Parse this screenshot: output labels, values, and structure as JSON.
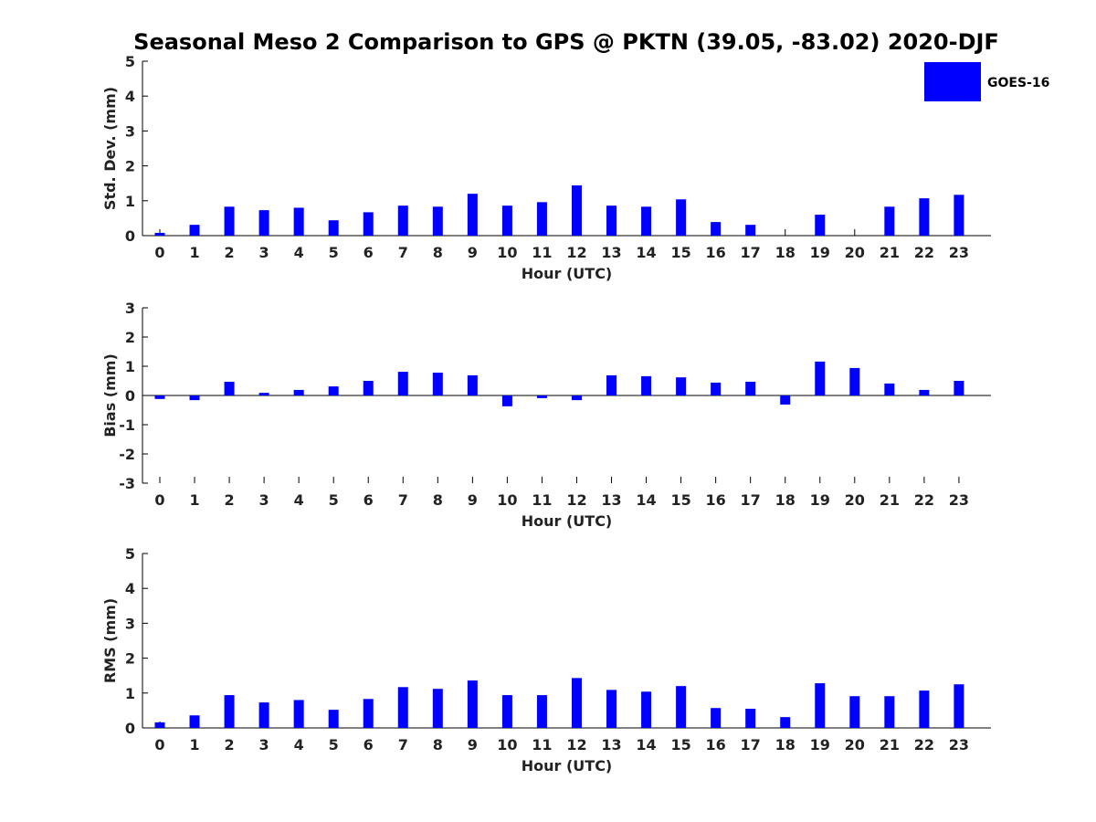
{
  "title": "Seasonal Meso 2 Comparison to GPS @ PKTN (39.05, -83.02) 2020-DJF",
  "legend": {
    "label": "GOES-16",
    "color": "#0000ff",
    "position": "top-right"
  },
  "chart_data": [
    {
      "type": "bar",
      "ylabel": "Std. Dev. (mm)",
      "xlabel": "Hour (UTC)",
      "ylim": [
        0,
        5
      ],
      "yticks": [
        "0",
        "1",
        "2",
        "3",
        "4",
        "5"
      ],
      "categories": [
        "0",
        "1",
        "2",
        "3",
        "4",
        "5",
        "6",
        "7",
        "8",
        "9",
        "10",
        "11",
        "12",
        "13",
        "14",
        "15",
        "16",
        "17",
        "18",
        "19",
        "20",
        "21",
        "22",
        "23"
      ],
      "series": [
        {
          "name": "GOES-16",
          "values": [
            0.08,
            0.31,
            0.83,
            0.73,
            0.8,
            0.44,
            0.67,
            0.86,
            0.83,
            1.2,
            0.86,
            0.96,
            1.44,
            0.86,
            0.83,
            1.04,
            0.39,
            0.31,
            null,
            0.6,
            null,
            0.83,
            1.07,
            1.17
          ]
        }
      ]
    },
    {
      "type": "bar",
      "ylabel": "Bias (mm)",
      "xlabel": "Hour (UTC)",
      "ylim": [
        -3,
        3
      ],
      "yticks": [
        "-3",
        "-2",
        "-1",
        "0",
        "1",
        "2",
        "3"
      ],
      "categories": [
        "0",
        "1",
        "2",
        "3",
        "4",
        "5",
        "6",
        "7",
        "8",
        "9",
        "10",
        "11",
        "12",
        "13",
        "14",
        "15",
        "16",
        "17",
        "18",
        "19",
        "20",
        "21",
        "22",
        "23"
      ],
      "series": [
        {
          "name": "GOES-16",
          "values": [
            -0.12,
            -0.16,
            0.47,
            0.09,
            0.19,
            0.31,
            0.5,
            0.81,
            0.78,
            0.69,
            -0.37,
            -0.09,
            -0.16,
            0.69,
            0.66,
            0.62,
            0.44,
            0.47,
            -0.31,
            1.16,
            0.94,
            0.41,
            0.19,
            0.5
          ]
        }
      ]
    },
    {
      "type": "bar",
      "ylabel": "RMS (mm)",
      "xlabel": "Hour (UTC)",
      "ylim": [
        0,
        5
      ],
      "yticks": [
        "0",
        "1",
        "2",
        "3",
        "4",
        "5"
      ],
      "categories": [
        "0",
        "1",
        "2",
        "3",
        "4",
        "5",
        "6",
        "7",
        "8",
        "9",
        "10",
        "11",
        "12",
        "13",
        "14",
        "15",
        "16",
        "17",
        "18",
        "19",
        "20",
        "21",
        "22",
        "23"
      ],
      "series": [
        {
          "name": "GOES-16",
          "values": [
            0.16,
            0.36,
            0.94,
            0.73,
            0.8,
            0.52,
            0.83,
            1.17,
            1.12,
            1.36,
            0.94,
            0.94,
            1.43,
            1.09,
            1.04,
            1.2,
            0.57,
            0.55,
            0.31,
            1.28,
            0.91,
            0.91,
            1.07,
            1.25
          ]
        }
      ]
    }
  ]
}
